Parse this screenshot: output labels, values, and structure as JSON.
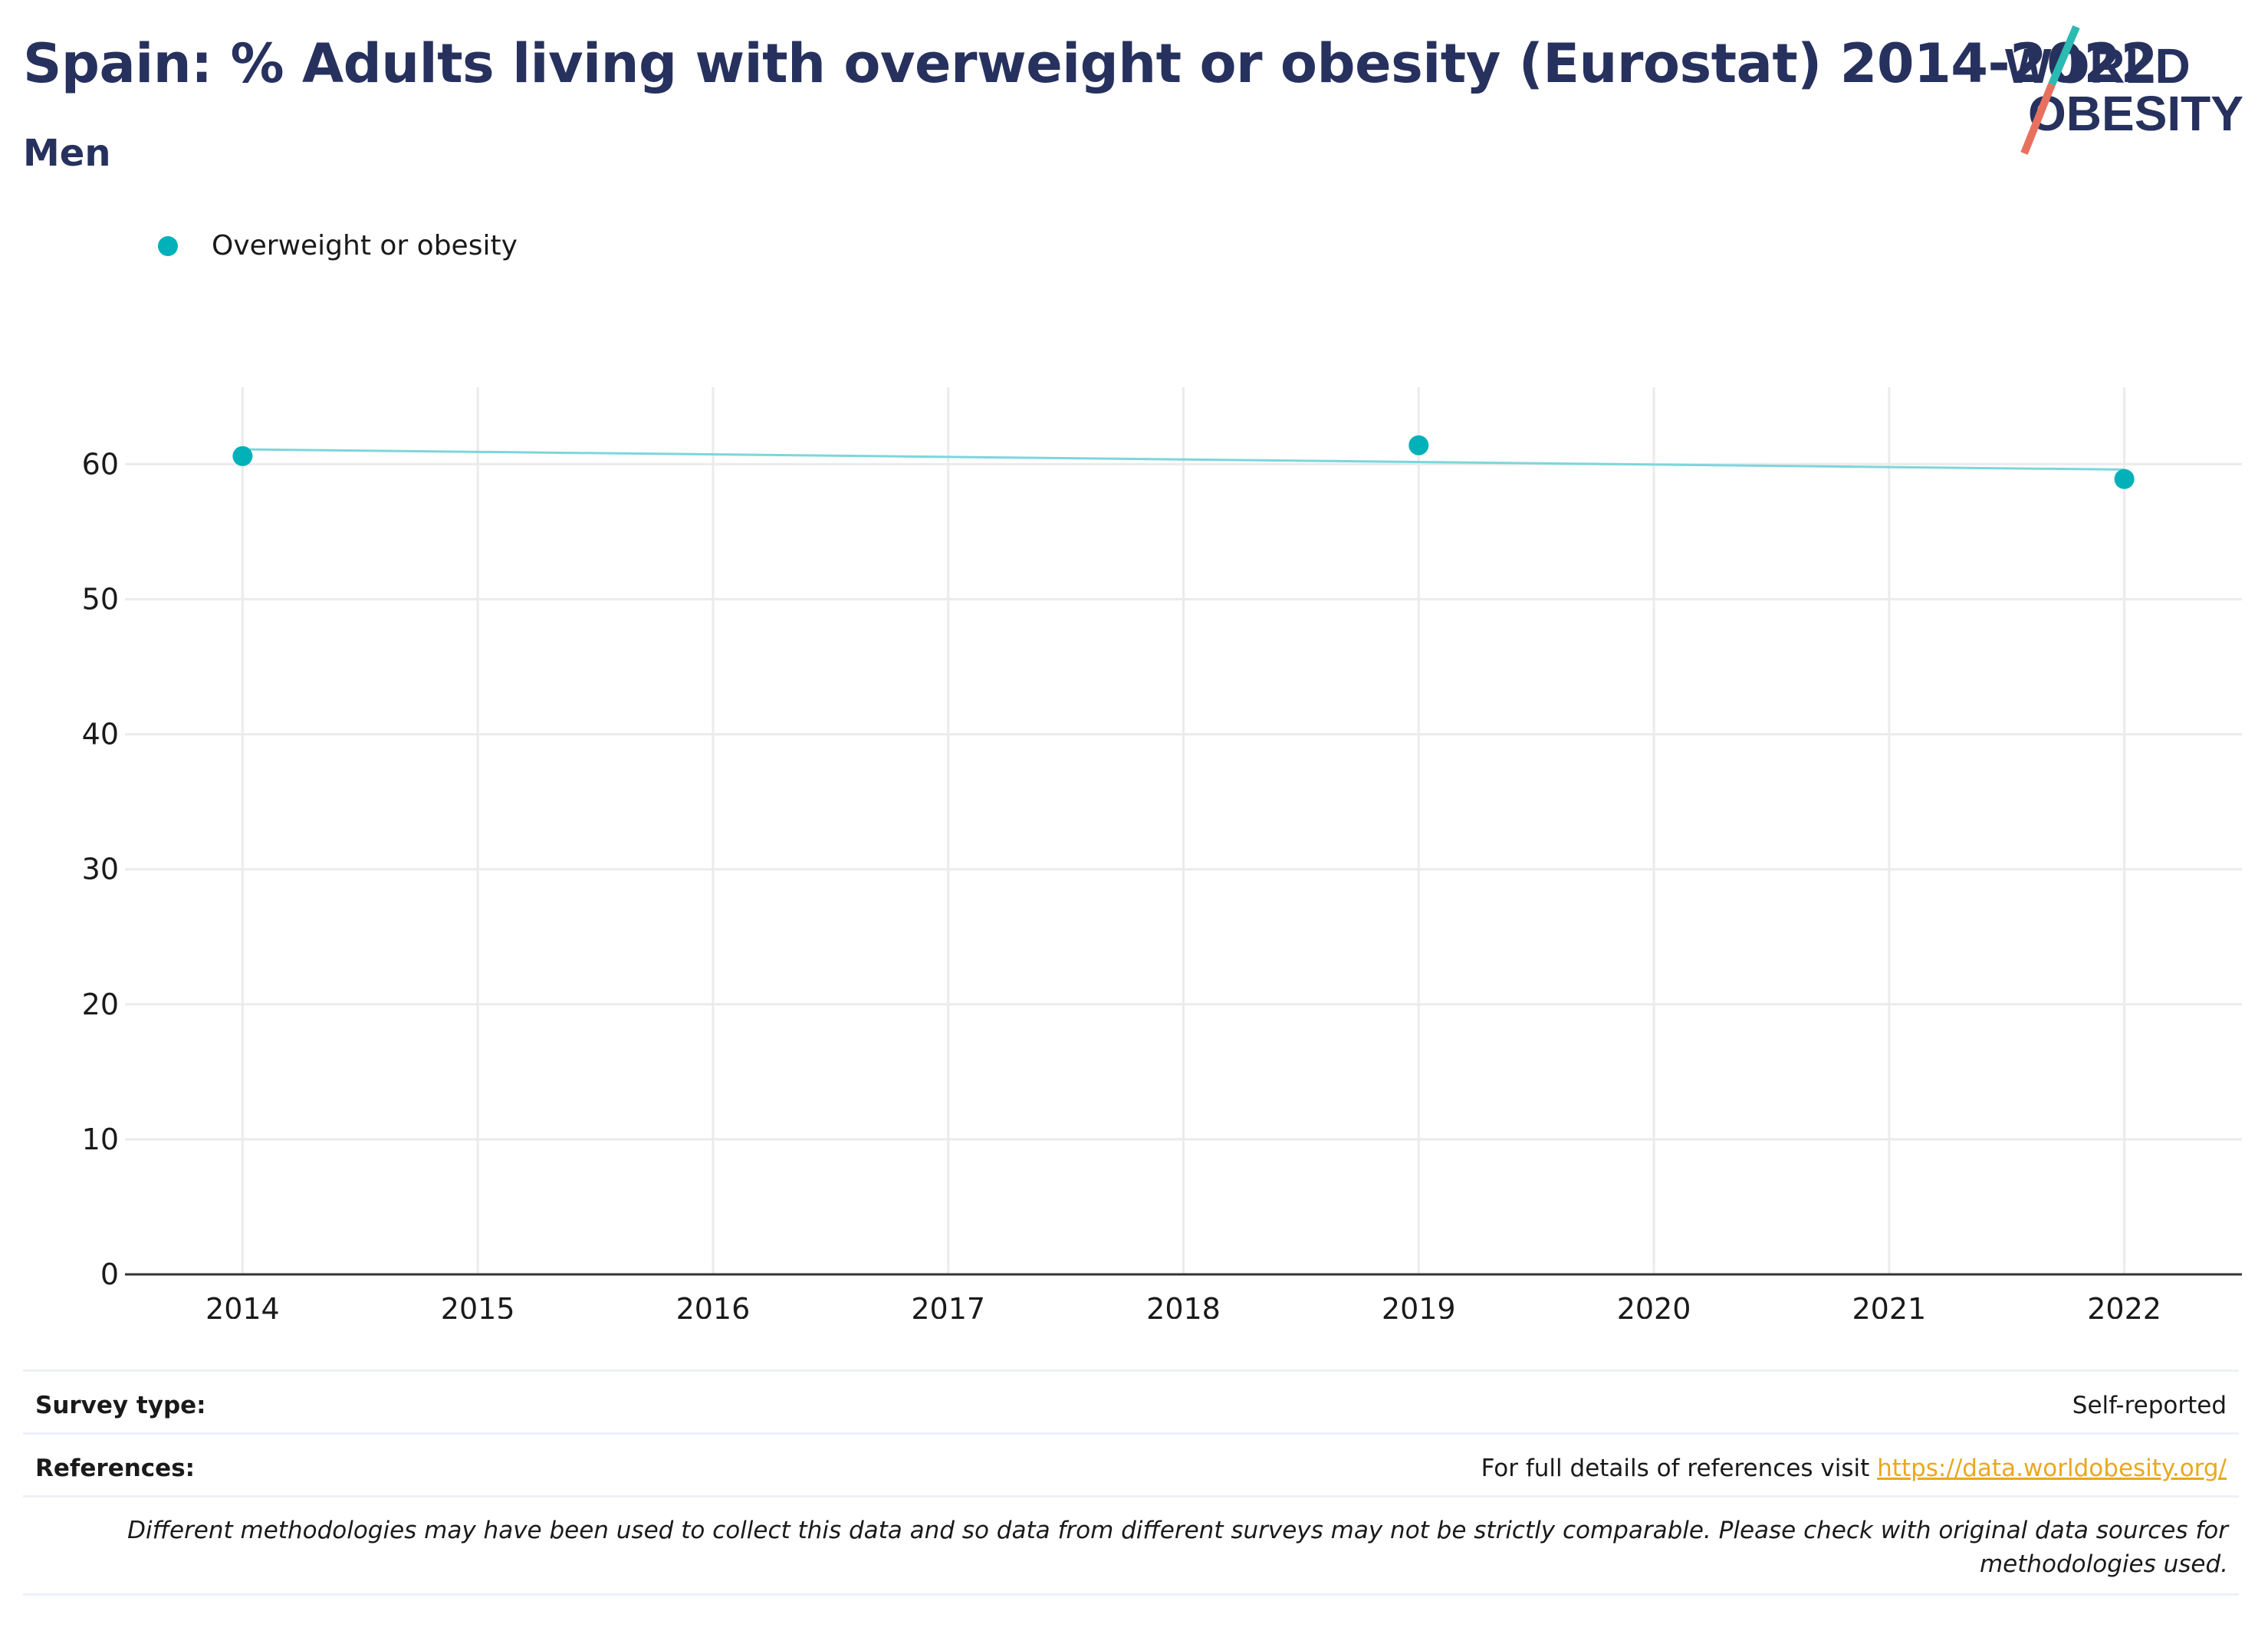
{
  "title": "Spain: % Adults living with overweight or obesity (Eurostat) 2014-2022",
  "subtitle": "Men",
  "logo": {
    "line1": "WORLD",
    "line2": "OBESITY",
    "accent_teal": "#2bbbb2",
    "accent_red": "#e8705e",
    "text_color": "#27315e"
  },
  "colors": {
    "series": "#00b1b9",
    "trend": "#7dd6da",
    "title": "#27315e",
    "link": "#e9a81d"
  },
  "chart_data": {
    "type": "scatter",
    "x_ticks": [
      "2014",
      "2015",
      "2016",
      "2017",
      "2018",
      "2019",
      "2020",
      "2021",
      "2022"
    ],
    "y_ticks": [
      "0",
      "10",
      "20",
      "30",
      "40",
      "50",
      "60"
    ],
    "xlim": [
      2013.5,
      2022.5
    ],
    "ylim": [
      0,
      65.7
    ],
    "series": [
      {
        "name": "Overweight or obesity",
        "x": [
          2014,
          2019,
          2022
        ],
        "y": [
          60.6,
          61.4,
          58.9
        ]
      }
    ],
    "trendline": {
      "x": [
        2014,
        2022
      ],
      "y": [
        61.1,
        59.6
      ]
    },
    "grid": true,
    "legend": "top-left"
  },
  "footer": {
    "survey_label": "Survey type:",
    "survey_value": "Self-reported",
    "references_label": "References:",
    "references_text": "For full details of references visit ",
    "references_link": "https://data.worldobesity.org/",
    "disclaimer": "Different methodologies may have been used to collect this data and so data from different surveys may not be strictly comparable. Please check with original data sources for methodologies used."
  }
}
